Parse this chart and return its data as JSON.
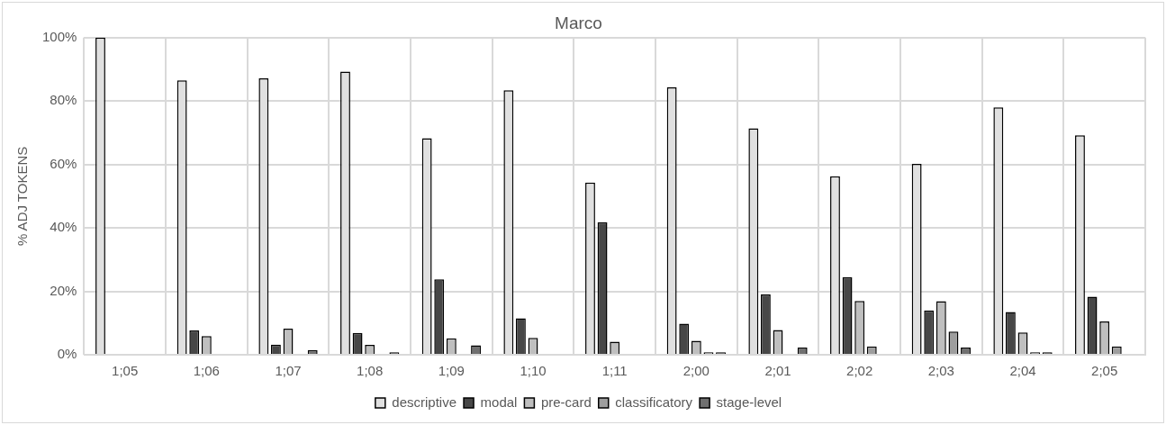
{
  "chart_data": {
    "type": "bar",
    "title": "Marco",
    "ylabel": "% ADJ TOKENS",
    "categories": [
      "1;05",
      "1;06",
      "1;07",
      "1;08",
      "1;09",
      "1;10",
      "1;11",
      "2;00",
      "2;01",
      "2;02",
      "2;03",
      "2;04",
      "2;05"
    ],
    "series": [
      {
        "name": "descriptive",
        "color": "#e0e0e0",
        "values": [
          100,
          86.5,
          87.2,
          89.3,
          68.3,
          83.4,
          54.3,
          84.3,
          71.4,
          56.3,
          60.2,
          78,
          69.2
        ]
      },
      {
        "name": "modal",
        "color": "#474747",
        "values": [
          null,
          7.7,
          3.2,
          6.9,
          23.8,
          11.5,
          41.8,
          9.8,
          19,
          24.5,
          14,
          13.5,
          18.3
        ]
      },
      {
        "name": "pre-card",
        "color": "#bfbfbf",
        "values": [
          null,
          5.9,
          8.2,
          3.1,
          5.2,
          5.3,
          4.1,
          4.4,
          7.8,
          17,
          16.9,
          7,
          10.5
        ]
      },
      {
        "name": "classificatory",
        "color": "#9e9e9e",
        "values": [
          null,
          null,
          null,
          null,
          null,
          null,
          null,
          0.8,
          null,
          2.6,
          7.3,
          0.8,
          2.6
        ]
      },
      {
        "name": "stage-level",
        "color": "#707070",
        "values": [
          null,
          null,
          1.5,
          0.8,
          3,
          null,
          null,
          0.8,
          2.3,
          null,
          2.3,
          0.8,
          null
        ]
      }
    ],
    "ylim": [
      0,
      100
    ],
    "yticks": [
      {
        "value": 0,
        "label": "0%"
      },
      {
        "value": 20,
        "label": "20%"
      },
      {
        "value": 40,
        "label": "40%"
      },
      {
        "value": 60,
        "label": "60%"
      },
      {
        "value": 80,
        "label": "80%"
      },
      {
        "value": 100,
        "label": "100%"
      }
    ],
    "grid": true,
    "legend": "bottom"
  }
}
